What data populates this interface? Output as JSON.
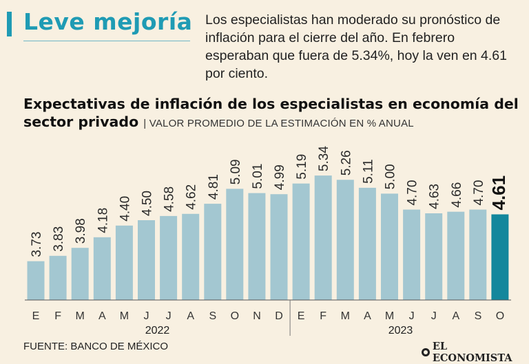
{
  "header": {
    "headline": "Leve mejoría",
    "intro": "Los especialistas han moderado su pronóstico de inflación para el cierre del año. En febrero esperaban que fuera de 5.34%, hoy la ven en 4.61 por ciento."
  },
  "chart_data": {
    "type": "bar",
    "title": "Expectativas de inflación de los especialistas en economía del sector privado",
    "subtitle": "VALOR PROMEDIO DE LA ESTIMACIÓN EN % ANUAL",
    "categories": [
      "E",
      "F",
      "M",
      "A",
      "M",
      "J",
      "J",
      "A",
      "S",
      "O",
      "N",
      "D",
      "E",
      "F",
      "M",
      "A",
      "M",
      "J",
      "J",
      "A",
      "S",
      "O"
    ],
    "values": [
      3.73,
      3.83,
      3.98,
      4.18,
      4.4,
      4.5,
      4.58,
      4.62,
      4.81,
      5.09,
      5.01,
      4.99,
      5.19,
      5.34,
      5.26,
      5.11,
      5.0,
      4.7,
      4.63,
      4.66,
      4.7,
      4.61
    ],
    "value_labels": [
      "3.73",
      "3.83",
      "3.98",
      "4.18",
      "4.40",
      "4.50",
      "4.58",
      "4.62",
      "4.81",
      "5.09",
      "5.01",
      "4.99",
      "5.19",
      "5.34",
      "5.26",
      "5.11",
      "5.00",
      "4.70",
      "4.63",
      "4.66",
      "4.70",
      "4.61"
    ],
    "years": [
      {
        "label": "2022",
        "start": 0,
        "end": 11
      },
      {
        "label": "2023",
        "start": 12,
        "end": 21
      }
    ],
    "highlight_index": 21,
    "ylim": [
      3.0,
      5.6
    ],
    "colors": {
      "bar": "#a3c7d1",
      "highlight": "#13879c",
      "label": "#2a2a2a"
    },
    "xlabel": "",
    "ylabel": ""
  },
  "footer": {
    "source": "FUENTE: BANCO DE MÉXICO",
    "brand": "EL ECONOMISTA",
    "brand_icon": "el-economista-logo-icon"
  }
}
